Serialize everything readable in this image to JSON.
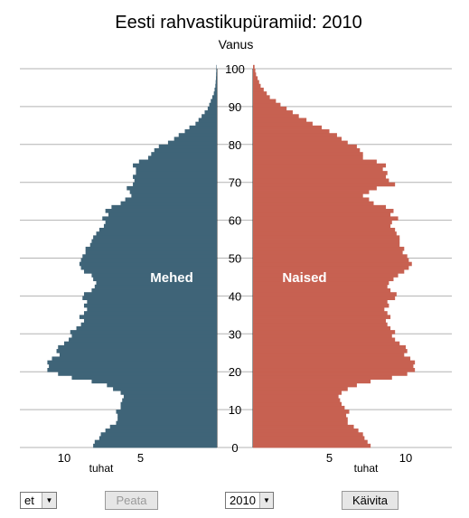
{
  "chart_data": {
    "type": "bar",
    "title": "Eesti rahvastikupüramiid: 2010",
    "ylabel": "Vanus",
    "xlabel": "tuhat",
    "y_ticks": [
      0,
      10,
      20,
      30,
      40,
      50,
      60,
      70,
      80,
      90,
      100
    ],
    "x_ticks": [
      10,
      5
    ],
    "xlim": [
      0,
      12.6
    ],
    "ylim": [
      0,
      100
    ],
    "colors": {
      "Mehed": "#3f6478",
      "Naised": "#c76151"
    },
    "series": [
      {
        "name": "Mehed",
        "ages": [
          0,
          1,
          2,
          3,
          4,
          5,
          6,
          7,
          8,
          9,
          10,
          11,
          12,
          13,
          14,
          15,
          16,
          17,
          18,
          19,
          20,
          21,
          22,
          23,
          24,
          25,
          26,
          27,
          28,
          29,
          30,
          31,
          32,
          33,
          34,
          35,
          36,
          37,
          38,
          39,
          40,
          41,
          42,
          43,
          44,
          45,
          46,
          47,
          48,
          49,
          50,
          51,
          52,
          53,
          54,
          55,
          56,
          57,
          58,
          59,
          60,
          61,
          62,
          63,
          64,
          65,
          66,
          67,
          68,
          69,
          70,
          71,
          72,
          73,
          74,
          75,
          76,
          77,
          78,
          79,
          80,
          81,
          82,
          83,
          84,
          85,
          86,
          87,
          88,
          89,
          90,
          91,
          92,
          93,
          94,
          95,
          96,
          97,
          98,
          99,
          100
        ],
        "values": [
          8.1,
          8.0,
          7.7,
          7.6,
          7.3,
          7.0,
          6.6,
          6.5,
          6.5,
          6.6,
          6.3,
          6.3,
          6.2,
          6.1,
          6.3,
          6.8,
          7.2,
          8.2,
          9.5,
          10.4,
          11.1,
          11.0,
          11.1,
          10.8,
          10.3,
          10.5,
          10.4,
          10.0,
          9.7,
          9.5,
          9.6,
          9.2,
          8.9,
          8.7,
          9.0,
          8.7,
          8.5,
          8.7,
          8.5,
          8.8,
          8.7,
          8.2,
          8.0,
          7.9,
          8.1,
          8.2,
          8.7,
          8.9,
          9.0,
          8.9,
          8.8,
          8.6,
          8.6,
          8.3,
          8.2,
          8.1,
          7.9,
          7.7,
          7.4,
          7.3,
          7.5,
          7.1,
          7.3,
          6.9,
          6.3,
          6.0,
          5.6,
          5.7,
          5.9,
          5.5,
          5.4,
          5.5,
          5.3,
          5.3,
          5.5,
          5.1,
          4.5,
          4.3,
          4.1,
          3.8,
          3.2,
          2.8,
          2.5,
          2.1,
          1.8,
          1.4,
          1.2,
          1.0,
          0.8,
          0.6,
          0.5,
          0.4,
          0.3,
          0.2,
          0.15,
          0.1,
          0.08,
          0.06,
          0.05,
          0.04,
          0.03
        ]
      },
      {
        "name": "Naised",
        "ages": [
          0,
          1,
          2,
          3,
          4,
          5,
          6,
          7,
          8,
          9,
          10,
          11,
          12,
          13,
          14,
          15,
          16,
          17,
          18,
          19,
          20,
          21,
          22,
          23,
          24,
          25,
          26,
          27,
          28,
          29,
          30,
          31,
          32,
          33,
          34,
          35,
          36,
          37,
          38,
          39,
          40,
          41,
          42,
          43,
          44,
          45,
          46,
          47,
          48,
          49,
          50,
          51,
          52,
          53,
          54,
          55,
          56,
          57,
          58,
          59,
          60,
          61,
          62,
          63,
          64,
          65,
          66,
          67,
          68,
          69,
          70,
          71,
          72,
          73,
          74,
          75,
          76,
          77,
          78,
          79,
          80,
          81,
          82,
          83,
          84,
          85,
          86,
          87,
          88,
          89,
          90,
          91,
          92,
          93,
          94,
          95,
          96,
          97,
          98,
          99,
          100
        ],
        "values": [
          7.7,
          7.5,
          7.3,
          7.2,
          6.9,
          6.6,
          6.2,
          6.2,
          6.1,
          6.3,
          6.0,
          5.8,
          5.7,
          5.6,
          5.8,
          6.2,
          6.8,
          7.7,
          9.1,
          10.1,
          10.6,
          10.5,
          10.6,
          10.3,
          9.9,
          10.1,
          10.0,
          9.6,
          9.3,
          9.1,
          9.3,
          9.0,
          8.8,
          8.7,
          9.0,
          8.8,
          8.6,
          8.9,
          8.8,
          9.3,
          9.4,
          9.0,
          8.8,
          8.9,
          9.2,
          9.5,
          9.9,
          10.2,
          10.4,
          10.2,
          10.1,
          9.8,
          9.9,
          9.6,
          9.6,
          9.6,
          9.4,
          9.3,
          9.0,
          9.1,
          9.5,
          9.0,
          9.2,
          8.7,
          7.9,
          7.6,
          7.2,
          7.6,
          8.1,
          9.3,
          8.9,
          8.7,
          8.8,
          8.5,
          8.7,
          8.1,
          7.2,
          7.2,
          7.0,
          6.8,
          6.2,
          5.8,
          5.5,
          5.0,
          4.5,
          3.9,
          3.5,
          3.0,
          2.6,
          2.2,
          1.8,
          1.5,
          1.1,
          0.9,
          0.7,
          0.5,
          0.4,
          0.3,
          0.2,
          0.15,
          0.1
        ]
      }
    ],
    "annotations": [
      "Mehed",
      "Naised"
    ]
  },
  "controls": {
    "language_value": "et",
    "pause_label": "Peata",
    "year_value": "2010",
    "run_label": "Käivita"
  }
}
